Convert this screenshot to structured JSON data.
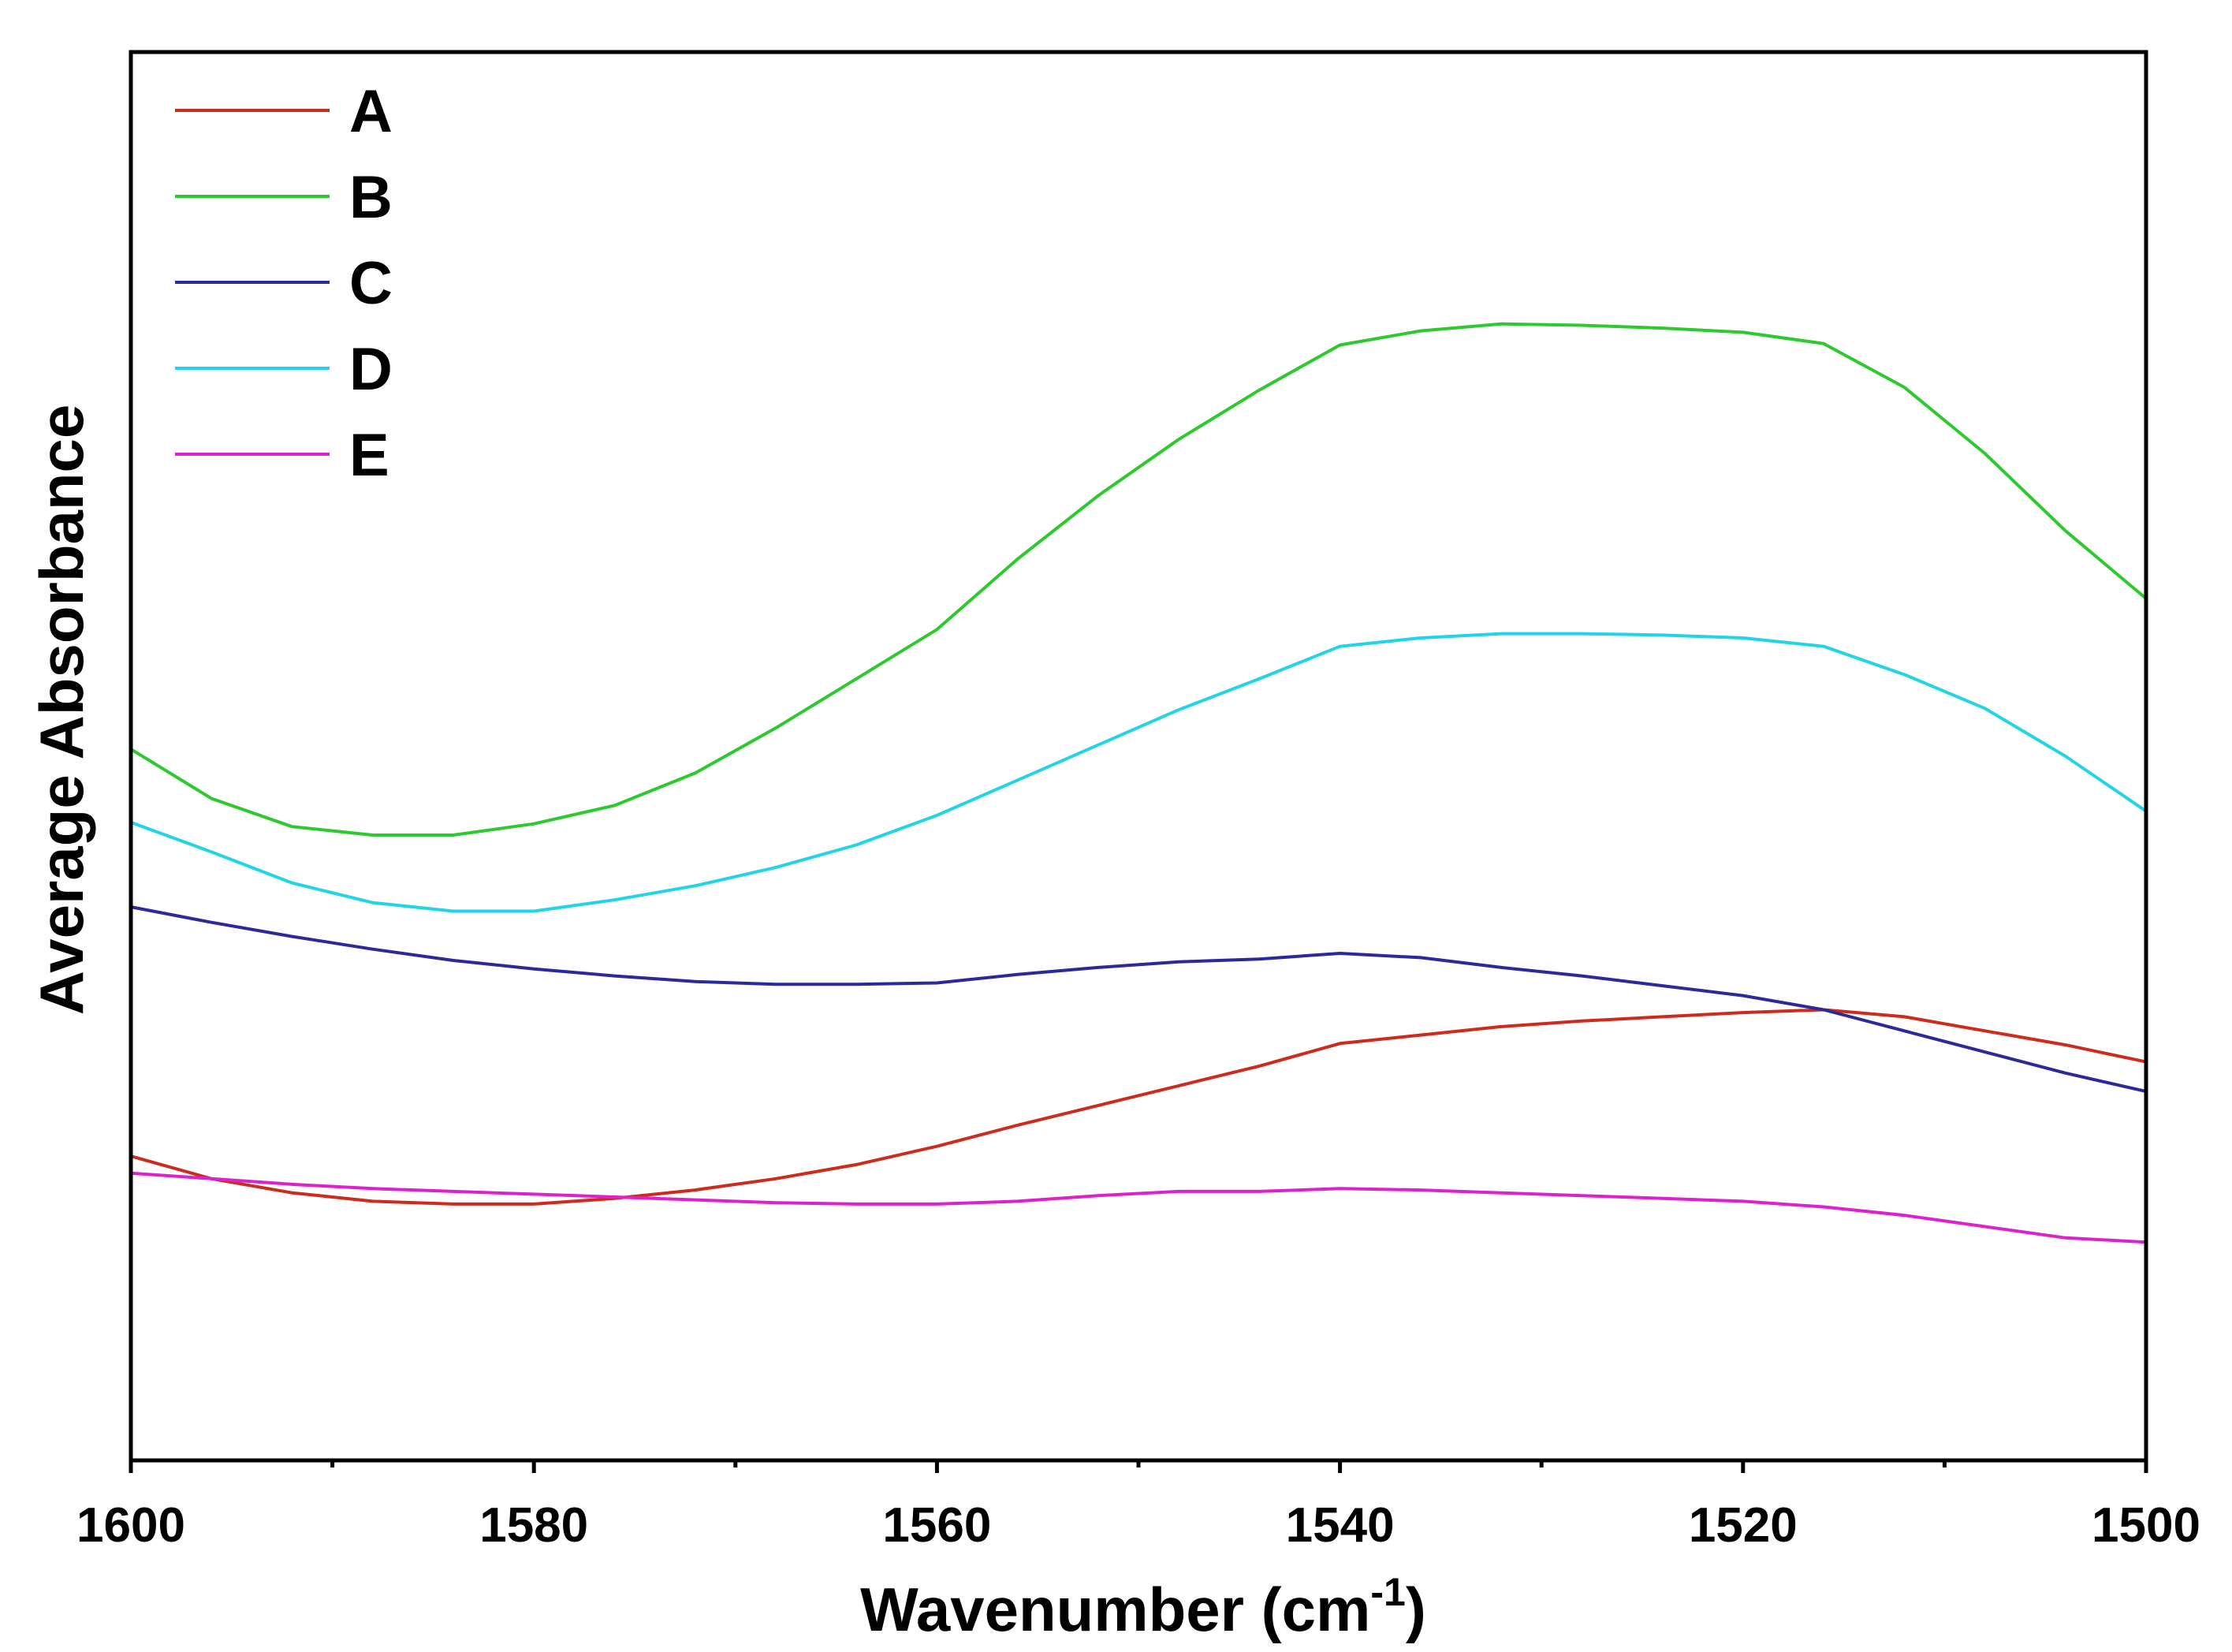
{
  "chart_data": {
    "type": "line",
    "title": "",
    "xlabel": "Wavenumber (cm",
    "xlabel_superscript": "-1",
    "xlabel_close": ")",
    "ylabel": "Average Absorbance",
    "xlim": [
      1600,
      1500
    ],
    "ylim": [
      0,
      1
    ],
    "x_ticks": [
      "1600",
      "1580",
      "1560",
      "1540",
      "1520",
      "1500"
    ],
    "grid": false,
    "legend_position": "top-left",
    "x": [
      1600,
      1596,
      1592,
      1588,
      1584,
      1580,
      1576,
      1572,
      1568,
      1564,
      1560,
      1556,
      1552,
      1548,
      1544,
      1540,
      1536,
      1532,
      1528,
      1524,
      1520,
      1516,
      1512,
      1508,
      1504,
      1500
    ],
    "series": [
      {
        "name": "A",
        "color": "#cc2b1d",
        "values": [
          0.216,
          0.2,
          0.19,
          0.184,
          0.182,
          0.182,
          0.186,
          0.192,
          0.2,
          0.21,
          0.223,
          0.238,
          0.252,
          0.266,
          0.28,
          0.296,
          0.302,
          0.308,
          0.312,
          0.315,
          0.318,
          0.32,
          0.315,
          0.305,
          0.295,
          0.283
        ]
      },
      {
        "name": "B",
        "color": "#2ec92e",
        "values": [
          0.505,
          0.47,
          0.45,
          0.444,
          0.444,
          0.452,
          0.465,
          0.488,
          0.52,
          0.555,
          0.59,
          0.64,
          0.685,
          0.725,
          0.76,
          0.792,
          0.802,
          0.807,
          0.806,
          0.804,
          0.801,
          0.793,
          0.762,
          0.715,
          0.66,
          0.612
        ]
      },
      {
        "name": "C",
        "color": "#2a2a9c",
        "values": [
          0.393,
          0.382,
          0.372,
          0.363,
          0.355,
          0.349,
          0.344,
          0.34,
          0.338,
          0.338,
          0.339,
          0.345,
          0.35,
          0.354,
          0.356,
          0.36,
          0.357,
          0.35,
          0.344,
          0.337,
          0.33,
          0.32,
          0.305,
          0.29,
          0.275,
          0.262
        ]
      },
      {
        "name": "D",
        "color": "#22d4e6",
        "values": [
          0.453,
          0.432,
          0.41,
          0.396,
          0.39,
          0.39,
          0.398,
          0.408,
          0.421,
          0.437,
          0.458,
          0.483,
          0.508,
          0.533,
          0.555,
          0.578,
          0.584,
          0.587,
          0.587,
          0.586,
          0.584,
          0.578,
          0.558,
          0.534,
          0.5,
          0.461
        ]
      },
      {
        "name": "E",
        "color": "#dd22cc",
        "values": [
          0.204,
          0.2,
          0.196,
          0.193,
          0.191,
          0.189,
          0.187,
          0.185,
          0.183,
          0.182,
          0.182,
          0.184,
          0.188,
          0.191,
          0.191,
          0.193,
          0.192,
          0.19,
          0.188,
          0.186,
          0.184,
          0.18,
          0.174,
          0.166,
          0.158,
          0.155
        ]
      }
    ]
  }
}
